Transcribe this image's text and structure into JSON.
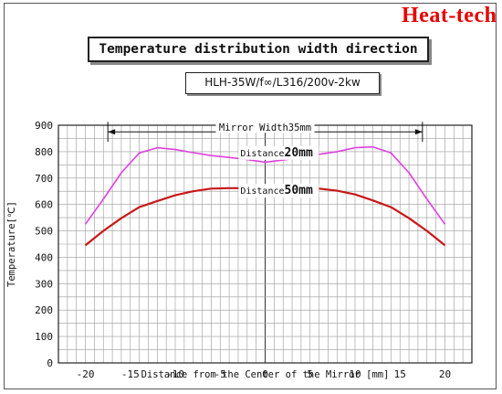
{
  "brand": "Heat-tech",
  "chart_data": {
    "type": "line",
    "title": "Temperature distribution width direction",
    "subtitle": "HLH-35W/f∞/L316/200v-2kw",
    "xlabel": "Distance from the Center of the Mirror [mm]",
    "ylabel": "Temperature[℃]",
    "xlim": [
      -23,
      23
    ],
    "ylim": [
      0,
      900
    ],
    "x_ticks": [
      -20,
      -15,
      -10,
      -5,
      0,
      5,
      10,
      15,
      20
    ],
    "y_ticks": [
      0,
      100,
      200,
      300,
      400,
      500,
      600,
      700,
      800,
      900
    ],
    "grid": true,
    "annotation": {
      "label": "Mirror Width35mm",
      "from": -17.5,
      "to": 17.5,
      "at_y": 875
    },
    "series": [
      {
        "name": "Distance 20mm",
        "label_prefix": "Distance",
        "label_value": "20mm",
        "color": "#e040e0",
        "label_at": [
          1,
          783
        ],
        "x": [
          -20,
          -18,
          -16,
          -14,
          -12,
          -10,
          -8,
          -6,
          -4,
          -2,
          0,
          2,
          4,
          6,
          8,
          10,
          12,
          14,
          16,
          18,
          20
        ],
        "values": [
          525,
          620,
          720,
          795,
          815,
          808,
          796,
          785,
          778,
          770,
          760,
          768,
          778,
          790,
          800,
          815,
          818,
          795,
          720,
          620,
          525
        ]
      },
      {
        "name": "Distance 50mm",
        "label_prefix": "Distance",
        "label_value": "50mm",
        "color": "#c81818",
        "label_at": [
          1,
          640
        ],
        "x": [
          -20,
          -18,
          -16,
          -14,
          -12,
          -10,
          -8,
          -6,
          -4,
          -2,
          0,
          2,
          4,
          6,
          8,
          10,
          12,
          14,
          16,
          18,
          20
        ],
        "values": [
          445,
          500,
          548,
          590,
          613,
          635,
          650,
          660,
          662,
          662,
          663,
          662,
          662,
          660,
          652,
          638,
          615,
          590,
          548,
          500,
          445
        ]
      }
    ]
  }
}
